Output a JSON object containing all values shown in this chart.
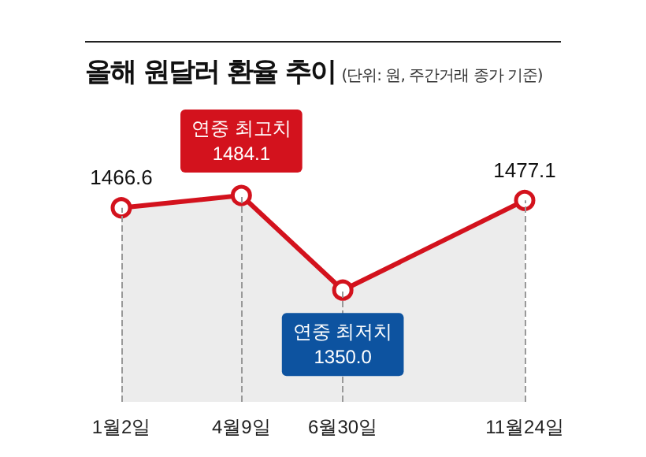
{
  "chart_data": {
    "type": "area",
    "title": "올해 원달러 환율 추이",
    "subtitle": "(단위: 원, 주간거래 종가 기준)",
    "x": [
      "--01-02",
      "--04-09",
      "--06-30",
      "--11-24"
    ],
    "values": [
      1466.6,
      1484.1,
      1350.0,
      1477.1
    ],
    "value_labels": [
      "1466.6",
      "1484.1",
      "1350.0",
      "1477.1"
    ],
    "color": "#d3121d",
    "xlim": [
      "--01-02",
      "--11-24"
    ],
    "xticks": [
      {
        "value": "--01-02",
        "label": "1월2일"
      },
      {
        "value": "--04-09",
        "label": "4월9일"
      },
      {
        "value": "--06-30",
        "label": "6월30일"
      },
      {
        "value": "--11-24",
        "label": "11월24일"
      }
    ],
    "tick_labels": "x",
    "ref_lines": [
      {
        "axis": "x",
        "value": "--01-02",
        "color": "#999999",
        "line_style": "dashed"
      },
      {
        "axis": "x",
        "value": "--04-09",
        "color": "#999999",
        "line_style": "dashed"
      },
      {
        "axis": "x",
        "value": "--06-30",
        "color": "#999999",
        "line_style": "dashed"
      },
      {
        "axis": "x",
        "value": "--11-24",
        "color": "#999999",
        "line_style": "dashed"
      }
    ],
    "marker": "circle",
    "line_style": "solid",
    "annotations": [
      {
        "text": "연중 최고치",
        "x": "--04-09",
        "y": 1484.1
      },
      {
        "text": "연중 최저치",
        "x": "--06-30",
        "y": 1350.0
      }
    ]
  }
}
